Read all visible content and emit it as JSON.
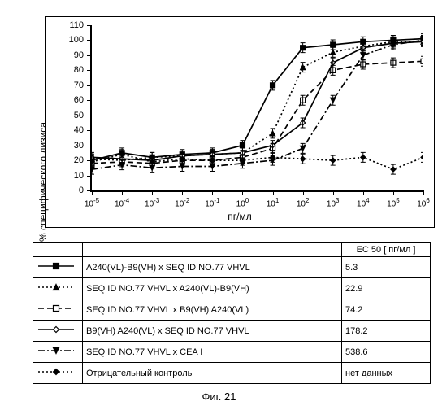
{
  "chart": {
    "type": "scatter-line",
    "y_label": "% специфического лизиса",
    "x_label": "пг/мл",
    "ylim": [
      0,
      110
    ],
    "ytick_step": 10,
    "yticks": [
      0,
      10,
      20,
      30,
      40,
      50,
      60,
      70,
      80,
      90,
      100,
      110
    ],
    "xticks": [
      -5,
      -4,
      -3,
      -2,
      -1,
      0,
      1,
      2,
      3,
      4,
      5,
      6
    ],
    "line_width": 1.7,
    "marker_size": 6,
    "text_color": "#000000",
    "series": [
      {
        "name": "A240(VL)-B9(VH) x SEQ ID NO.77 VHVL",
        "marker": "square-filled",
        "dash": "solid",
        "color": "#000000",
        "x": [
          -5,
          -4,
          -3,
          -2,
          -1,
          0,
          1,
          2,
          3,
          4,
          5,
          6
        ],
        "y": [
          20,
          25,
          22,
          24,
          25,
          30,
          70,
          95,
          97,
          99,
          100,
          101
        ]
      },
      {
        "name": "SEQ ID NO.77 VHVL x A240(VL)-B9(VH)",
        "marker": "triangle-filled",
        "dash": "dotted",
        "color": "#000000",
        "x": [
          -5,
          -4,
          -3,
          -2,
          -1,
          0,
          1,
          2,
          3,
          4,
          5,
          6
        ],
        "y": [
          21,
          20,
          22,
          23,
          24,
          25,
          38,
          82,
          92,
          96,
          99,
          99
        ]
      },
      {
        "name": "SEQ ID NO.77 VHVL x B9(VH) A240(VL)",
        "marker": "square-open",
        "dash": "dashed",
        "color": "#000000",
        "x": [
          -5,
          -4,
          -3,
          -2,
          -1,
          0,
          1,
          2,
          3,
          4,
          5,
          6
        ],
        "y": [
          18,
          19,
          18,
          20,
          20,
          22,
          28,
          60,
          80,
          84,
          85,
          86
        ]
      },
      {
        "name": "B9(VH) A240(VL) x SEQ ID NO.77 VHVL",
        "marker": "diamond-open",
        "dash": "solid",
        "color": "#000000",
        "x": [
          -5,
          -4,
          -3,
          -2,
          -1,
          0,
          1,
          2,
          3,
          4,
          5,
          6
        ],
        "y": [
          22,
          21,
          20,
          23,
          24,
          25,
          30,
          45,
          85,
          95,
          98,
          99
        ]
      },
      {
        "name": "SEQ ID NO.77 VHVL x CEA I",
        "marker": "triangle-down-filled",
        "dash": "dash-dot",
        "color": "#000000",
        "x": [
          -5,
          -4,
          -3,
          -2,
          -1,
          0,
          1,
          2,
          3,
          4,
          5,
          6
        ],
        "y": [
          14,
          17,
          15,
          16,
          16,
          18,
          20,
          28,
          60,
          90,
          97,
          100
        ]
      },
      {
        "name": "Отрицательный контроль",
        "marker": "diamond-filled",
        "dash": "dotted",
        "color": "#000000",
        "x": [
          -5,
          -4,
          -3,
          -2,
          -1,
          0,
          1,
          2,
          3,
          4,
          5,
          6
        ],
        "y": [
          19,
          24,
          19,
          21,
          20,
          20,
          22,
          21,
          20,
          22,
          14,
          22
        ]
      }
    ]
  },
  "legend": {
    "header_ec50": "EC 50 [ пг/мл ]",
    "rows": [
      {
        "swatch": "solid",
        "marker": "square-filled",
        "label": "A240(VL)-B9(VH) x SEQ ID NO.77 VHVL",
        "ec50": "5.3"
      },
      {
        "swatch": "dotted",
        "marker": "triangle-filled",
        "label": "SEQ ID NO.77 VHVL x A240(VL)-B9(VH)",
        "ec50": "22.9"
      },
      {
        "swatch": "dashed",
        "marker": "square-open",
        "label": "SEQ ID NO.77 VHVL x B9(VH) A240(VL)",
        "ec50": "74.2"
      },
      {
        "swatch": "solid",
        "marker": "diamond-open",
        "label": "B9(VH) A240(VL) x SEQ ID NO.77 VHVL",
        "ec50": "178.2"
      },
      {
        "swatch": "dash-dot",
        "marker": "triangle-down-filled",
        "label": "SEQ ID NO.77 VHVL x CEA I",
        "ec50": "538.6"
      },
      {
        "swatch": "dotted",
        "marker": "diamond-filled",
        "label": "Отрицательный контроль",
        "ec50": "нет данных"
      }
    ]
  },
  "caption": "Фиг. 21"
}
